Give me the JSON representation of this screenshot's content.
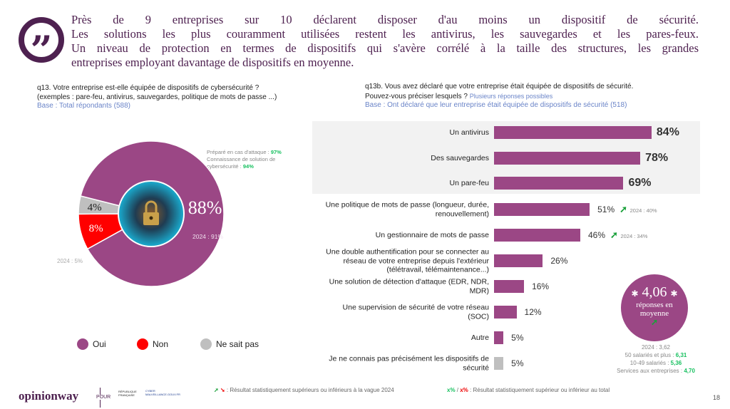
{
  "headline": [
    "Près de 9 entreprises sur 10 déclarent disposer d'au moins un dispositif de sécurité.",
    "Les solutions les plus couramment utilisées restent les antivirus, les sauvegardes et les pares-feux.",
    "Un niveau de protection en termes de dispositifs qui s'avère corrélé à la taille des structures, les grandes",
    "entreprises employant davantage de dispositifs en moyenne."
  ],
  "left_question": {
    "line1": "q13. Votre entreprise est-elle équipée de dispositifs de cybersécurité ?",
    "line2": "(exemples : pare-feu, antivirus, sauvegardes, politique de mots de passe ...)",
    "base": "Base : Total répondants (588)"
  },
  "right_question": {
    "line1": "q13b. Vous avez déclaré que votre entreprise était équipée de dispositifs de sécurité.",
    "line2": "Pouvez-vous préciser lesquels ?",
    "hint": "Plusieurs réponses possibles",
    "base": "Base : Ont déclaré que leur entreprise était équipée de dispositifs de sécurité (518)"
  },
  "side_note": {
    "l1": "Préparé en cas d'attaque : ",
    "v1": "97%",
    "l2": "Connaissance de solution de",
    "l3": "cybersécurité : ",
    "v3": "94%"
  },
  "chart_data": [
    {
      "type": "pie",
      "donut": true,
      "slices": [
        {
          "name": "Oui",
          "value": 88,
          "label": "88%",
          "color": "#9b4785",
          "evolution": "2024 : 91%"
        },
        {
          "name": "Non",
          "value": 8,
          "label": "8%",
          "color": "#ff0000",
          "evolution": "2024 : 5%"
        },
        {
          "name": "Ne sait pas",
          "value": 4,
          "label": "4%",
          "color": "#bfbfbf"
        }
      ],
      "legend_position": "bottom"
    },
    {
      "type": "bar",
      "orientation": "horizontal",
      "unit": "%",
      "color": "#9b4785",
      "categories": [
        "Un antivirus",
        "Des sauvegardes",
        "Un pare-feu",
        "Une politique de mots de passe (longueur, durée, renouvellement)",
        "Un gestionnaire de mots de passe",
        "Une double authentification pour se connecter au réseau de votre entreprise depuis l'extérieur (télétravail, télémaintenance...)",
        "Une solution de détection d'attaque (EDR, NDR, MDR)",
        "Une supervision de sécurité de votre réseau (SOC)",
        "Autre",
        "Je ne connais pas précisément les dispositifs de sécurité"
      ],
      "values": [
        84,
        78,
        69,
        51,
        46,
        26,
        16,
        12,
        5,
        5
      ],
      "labels": [
        "84%",
        "78%",
        "69%",
        "51%",
        "46%",
        "26%",
        "16%",
        "12%",
        "5%",
        "5%"
      ],
      "evolutions": [
        "",
        "",
        "",
        "2024 : 40%",
        "2024 : 34%",
        "",
        "",
        "",
        "",
        ""
      ],
      "highlighted_top": 3,
      "last_bar_color": "#bfbfbf"
    }
  ],
  "average": {
    "value": "4,06",
    "text1": "réponses en",
    "text2": "moyenne",
    "prev": "2024 : 3,62",
    "rows": [
      {
        "label": "50 salariés et plus : ",
        "value": "6,31"
      },
      {
        "label": "10-49 salariés : ",
        "value": "5,36"
      },
      {
        "label": "Services aux entreprises : ",
        "value": "4,70"
      }
    ]
  },
  "footer": {
    "logo": "opinionway",
    "pour": "POUR",
    "partner1": "RÉPUBLIQUE FRANÇAISE",
    "partner2": "CYBER MALVEILLANCE.GOUV.FR",
    "legend1": ": Résultat statistiquement supérieurs ou inférieurs à la vague 2024",
    "legend2_up": "x%",
    "legend2_down": "x%",
    "legend2": ": Résultat statistiquement supérieur ou inférieur au total",
    "page": "18"
  }
}
